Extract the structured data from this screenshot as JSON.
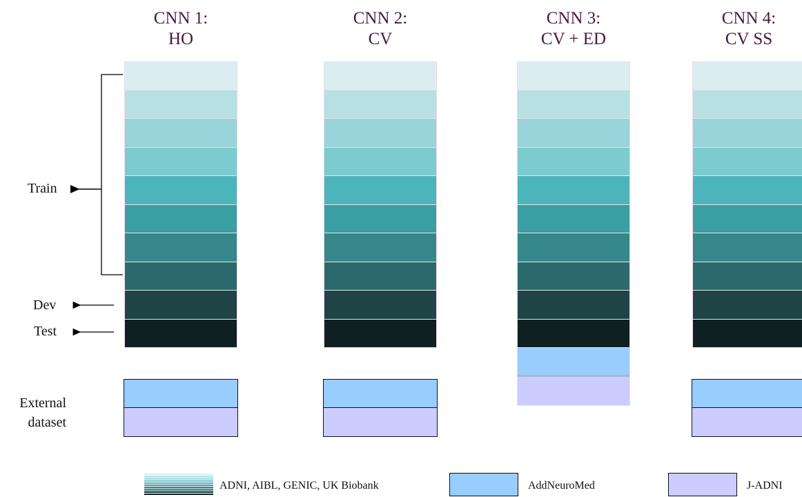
{
  "columns": [
    {
      "line1": "CNN 1:",
      "line2": "HO"
    },
    {
      "line1": "CNN 2:",
      "line2": "CV"
    },
    {
      "line1": "CNN 3:",
      "line2": "CV + ED"
    },
    {
      "line1": "CNN 4:",
      "line2": "CV SS"
    }
  ],
  "labels": {
    "train": "Train",
    "dev": "Dev",
    "test": "Test",
    "external_line1": "External",
    "external_line2": "dataset"
  },
  "legend": [
    {
      "text": "ADNI, AIBL, GENIC, UK Biobank"
    },
    {
      "text": "AddNeuroMed",
      "color": "#99ccff"
    },
    {
      "text": "J-ADNI",
      "color": "#ccccff"
    }
  ],
  "colors": {
    "gradient": [
      "#daeef2",
      "#b6e0e2",
      "#98d4da",
      "#7ccbce",
      "#4cb5bb",
      "#3b9ea3",
      "#358789",
      "#2a6a6c",
      "#1f4446",
      "#0f2022"
    ],
    "addneuromed": "#99ccff",
    "jadni": "#ccccff"
  }
}
